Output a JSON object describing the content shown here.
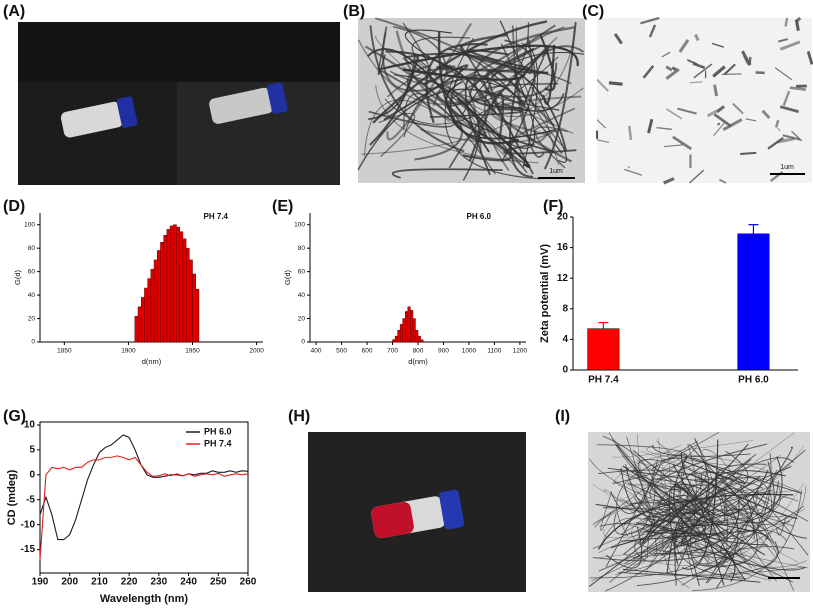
{
  "panel_labels": [
    "(A)",
    "(B)",
    "(C)",
    "(D)",
    "(E)",
    "(F)",
    "(G)",
    "(H)",
    "(I)"
  ],
  "scale_bars": [
    "1um",
    "1um"
  ],
  "chart_data": [
    {
      "type": "histogram",
      "label": "PH 7.4",
      "ylabel": "G(d)",
      "xlabel": "d(nm)",
      "bins": [
        1905,
        1907.5,
        1910,
        1912.5,
        1915,
        1917.5,
        1920,
        1922.5,
        1925,
        1927.5,
        1930,
        1932.5,
        1935,
        1937.5,
        1940,
        1942.5,
        1945,
        1947.5,
        1950,
        1952.5,
        1955
      ],
      "values": [
        22,
        30,
        38,
        46,
        54,
        62,
        70,
        78,
        85,
        91,
        96,
        99,
        100,
        98,
        94,
        88,
        80,
        70,
        58,
        45
      ],
      "color": "#e00000",
      "xlim": [
        1831,
        2005
      ],
      "xticks": [
        1850,
        1900,
        1950,
        2000
      ],
      "ylim": [
        0,
        110
      ],
      "yticks": [
        0,
        20,
        40,
        60,
        80,
        100
      ]
    },
    {
      "type": "histogram",
      "label": "PH 6.0",
      "ylabel": "G(d)",
      "xlabel": "d(nm)",
      "bins": [
        700,
        710,
        720,
        730,
        740,
        750,
        760,
        770,
        780,
        790,
        800,
        810,
        820
      ],
      "values": [
        2,
        5,
        10,
        15,
        20,
        26,
        30,
        27,
        20,
        10,
        5,
        2
      ],
      "color": "#e00000",
      "xlim": [
        376,
        1224
      ],
      "xticks": [
        400,
        500,
        600,
        700,
        800,
        900,
        1000,
        1100,
        1200
      ],
      "ylim": [
        0,
        110
      ],
      "yticks": [
        0,
        20,
        40,
        60,
        80,
        100
      ]
    },
    {
      "type": "bar",
      "ylabel": "Zeta potential (mV)",
      "categories": [
        "PH 7.4",
        "PH 6.0"
      ],
      "values": [
        5.4,
        17.8
      ],
      "errors": [
        0.8,
        1.2
      ],
      "colors": [
        "#ff0000",
        "#0000ff"
      ],
      "ylim": [
        0,
        20
      ],
      "yticks": [
        0,
        4,
        8,
        12,
        16,
        20
      ]
    },
    {
      "type": "line",
      "xlabel": "Wavelength (nm)",
      "ylabel": "CD (mdeg)",
      "x": [
        190,
        192,
        194,
        196,
        198,
        200,
        202,
        204,
        206,
        208,
        210,
        212,
        214,
        216,
        218,
        220,
        222,
        224,
        226,
        228,
        230,
        232,
        234,
        236,
        238,
        240,
        242,
        244,
        246,
        248,
        250,
        252,
        254,
        256,
        258,
        260
      ],
      "series": [
        {
          "name": "PH 6.0",
          "color": "#1a1a2e",
          "values": [
            -8,
            -4.5,
            -8,
            -13,
            -13,
            -12,
            -9,
            -5,
            -1,
            2,
            4.5,
            5.5,
            6,
            7,
            8,
            7.5,
            5,
            2,
            0,
            -0.5,
            -0.5,
            -0.3,
            0,
            0,
            -0.2,
            0.2,
            0,
            0.3,
            0.3,
            0.8,
            0.5,
            0.5,
            0.8,
            0.5,
            0.8,
            0.7
          ]
        },
        {
          "name": "PH 7.4",
          "color": "#e02020",
          "values": [
            -17,
            0,
            1.5,
            1.2,
            1.5,
            1,
            1.5,
            1.5,
            2.5,
            3,
            3,
            3.5,
            3.5,
            3.8,
            3.5,
            3,
            3.5,
            2,
            0.5,
            -0.3,
            -0.2,
            0.2,
            -0.2,
            0.2,
            -0.2,
            0.2,
            -0.3,
            0,
            0.2,
            0,
            0.3,
            -0.3,
            0,
            0.2,
            0,
            0.2
          ]
        }
      ],
      "xlim": [
        190,
        260
      ],
      "xticks": [
        190,
        200,
        210,
        220,
        230,
        240,
        250,
        260
      ],
      "ylim": [
        -19.7,
        10.6
      ],
      "yticks": [
        -15,
        -10,
        -5,
        0,
        5,
        10
      ],
      "legend": "upper right"
    }
  ]
}
